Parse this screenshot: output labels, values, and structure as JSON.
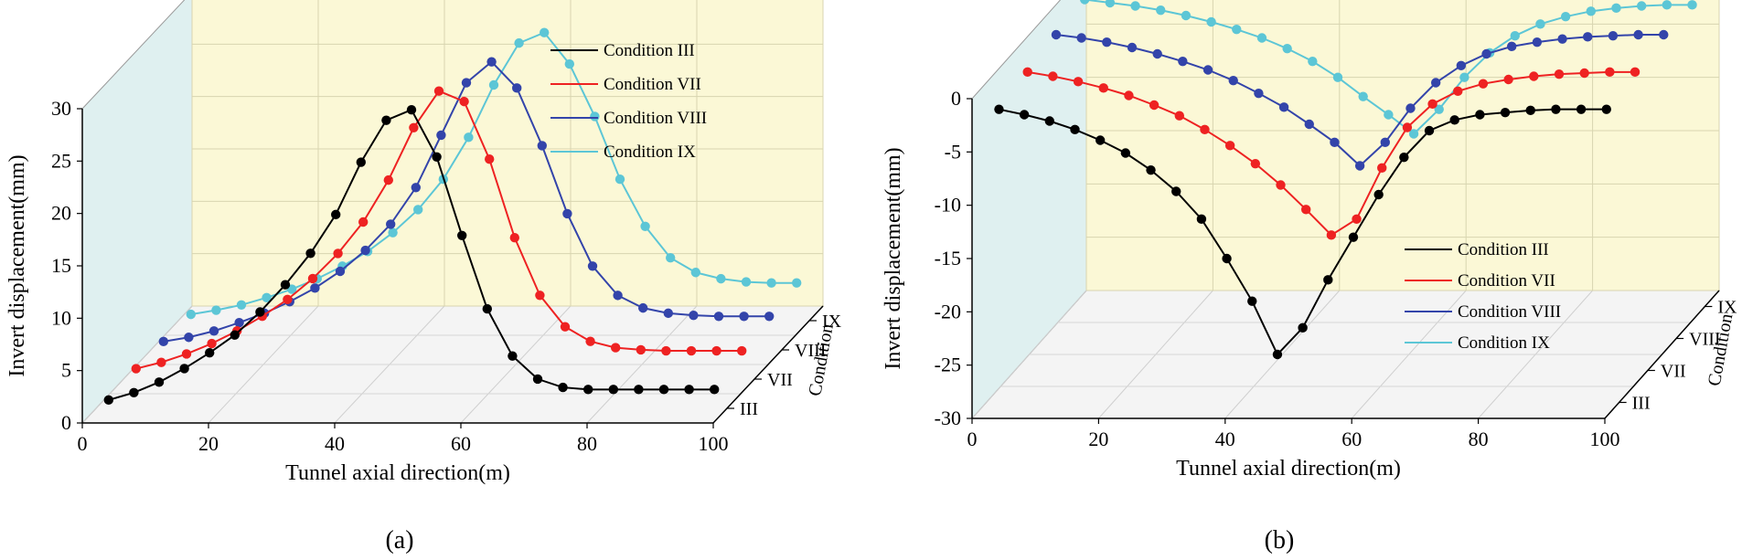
{
  "figure": {
    "caption_a": "(a)",
    "caption_b": "(b)"
  },
  "colors": {
    "III": "#000000",
    "VII": "#ee2222",
    "VIII": "#3344aa",
    "IX": "#5cc6d6",
    "back_wall": "#fbf8d6",
    "side_wall": "#dff0f0",
    "floor": "#f4f4f4"
  },
  "chart_data": [
    {
      "type": "line",
      "panel": "(a)",
      "xlabel": "Tunnel axial direction(m)",
      "ylabel": "Invert displacement(mm)",
      "zlabel": "Condition",
      "xlim": [
        0,
        100
      ],
      "ylim": [
        0,
        30
      ],
      "x_ticks": [
        "0",
        "20",
        "40",
        "60",
        "80",
        "100"
      ],
      "y_ticks": [
        "0",
        "5",
        "10",
        "15",
        "20",
        "25",
        "30"
      ],
      "z_ticks": [
        "III",
        "VII",
        "VIII",
        "IX"
      ],
      "legend": [
        "Condition III",
        "Condition VII",
        "Condition VIII",
        "Condition IX"
      ],
      "x": [
        2,
        6,
        10,
        14,
        18,
        22,
        26,
        30,
        34,
        38,
        42,
        46,
        50,
        54,
        58,
        62,
        66,
        70,
        74,
        78,
        82,
        86,
        90,
        94,
        98
      ],
      "series": [
        {
          "name": "Condition III",
          "values": [
            0.8,
            1.5,
            2.5,
            3.8,
            5.3,
            7.0,
            9.2,
            11.8,
            14.8,
            18.5,
            23.5,
            27.5,
            28.5,
            24.0,
            16.5,
            9.5,
            5.0,
            2.8,
            2.0,
            1.8,
            1.8,
            1.8,
            1.8,
            1.8,
            1.8
          ]
        },
        {
          "name": "Condition VII",
          "values": [
            1.0,
            1.6,
            2.4,
            3.4,
            4.6,
            6.0,
            7.6,
            9.6,
            12.0,
            15.0,
            19.0,
            24.0,
            27.5,
            26.5,
            21.0,
            13.5,
            8.0,
            5.0,
            3.6,
            3.0,
            2.8,
            2.7,
            2.7,
            2.7,
            2.7
          ]
        },
        {
          "name": "Condition VIII",
          "values": [
            0.8,
            1.2,
            1.8,
            2.6,
            3.5,
            4.6,
            5.9,
            7.5,
            9.5,
            12.0,
            15.5,
            20.5,
            25.5,
            27.5,
            25.0,
            19.5,
            13.0,
            8.0,
            5.2,
            4.0,
            3.5,
            3.3,
            3.2,
            3.2,
            3.2
          ]
        },
        {
          "name": "Condition IX",
          "values": [
            0.6,
            1.0,
            1.5,
            2.2,
            3.0,
            4.0,
            5.2,
            6.6,
            8.4,
            10.6,
            13.5,
            17.5,
            22.5,
            26.5,
            27.5,
            24.5,
            19.5,
            13.5,
            9.0,
            6.0,
            4.6,
            4.0,
            3.7,
            3.6,
            3.6
          ]
        }
      ]
    },
    {
      "type": "line",
      "panel": "(b)",
      "xlabel": "Tunnel axial direction(m)",
      "ylabel": "Invert displacement(mm)",
      "zlabel": "Condition",
      "xlim": [
        0,
        100
      ],
      "ylim": [
        -30,
        0
      ],
      "x_ticks": [
        "0",
        "20",
        "40",
        "60",
        "80",
        "100"
      ],
      "y_ticks": [
        "0",
        "-5",
        "-10",
        "-15",
        "-20",
        "-25",
        "-30"
      ],
      "z_ticks": [
        "III",
        "VII",
        "VIII",
        "IX"
      ],
      "legend": [
        "Condition III",
        "Condition VII",
        "Condition VIII",
        "Condition IX"
      ],
      "x": [
        2,
        6,
        10,
        14,
        18,
        22,
        26,
        30,
        34,
        38,
        42,
        46,
        50,
        54,
        58,
        62,
        66,
        70,
        74,
        78,
        82,
        86,
        90,
        94,
        98
      ],
      "series": [
        {
          "name": "Condition III",
          "values": [
            -2.5,
            -3.0,
            -3.6,
            -4.4,
            -5.4,
            -6.6,
            -8.2,
            -10.2,
            -12.8,
            -16.5,
            -20.5,
            -25.5,
            -23.0,
            -18.5,
            -14.5,
            -10.5,
            -7.0,
            -4.5,
            -3.5,
            -3.0,
            -2.8,
            -2.6,
            -2.5,
            -2.5,
            -2.5
          ]
        },
        {
          "name": "Condition VII",
          "values": [
            -2.0,
            -2.4,
            -2.9,
            -3.5,
            -4.2,
            -5.1,
            -6.1,
            -7.4,
            -8.9,
            -10.6,
            -12.6,
            -14.9,
            -17.3,
            -15.8,
            -11.0,
            -7.2,
            -5.0,
            -3.8,
            -3.1,
            -2.7,
            -2.4,
            -2.2,
            -2.1,
            -2.0,
            -2.0
          ]
        },
        {
          "name": "Condition VIII",
          "values": [
            -1.5,
            -1.8,
            -2.2,
            -2.7,
            -3.3,
            -4.0,
            -4.8,
            -5.8,
            -7.0,
            -8.3,
            -9.9,
            -11.6,
            -13.8,
            -11.6,
            -8.4,
            -6.0,
            -4.4,
            -3.3,
            -2.6,
            -2.2,
            -1.9,
            -1.7,
            -1.6,
            -1.5,
            -1.5
          ]
        },
        {
          "name": "Condition IX",
          "values": [
            -1.2,
            -1.5,
            -1.8,
            -2.2,
            -2.7,
            -3.3,
            -4.0,
            -4.8,
            -5.8,
            -7.0,
            -8.5,
            -10.3,
            -12.0,
            -13.8,
            -11.5,
            -8.5,
            -6.2,
            -4.6,
            -3.5,
            -2.8,
            -2.3,
            -2.0,
            -1.8,
            -1.7,
            -1.7
          ]
        }
      ]
    }
  ]
}
